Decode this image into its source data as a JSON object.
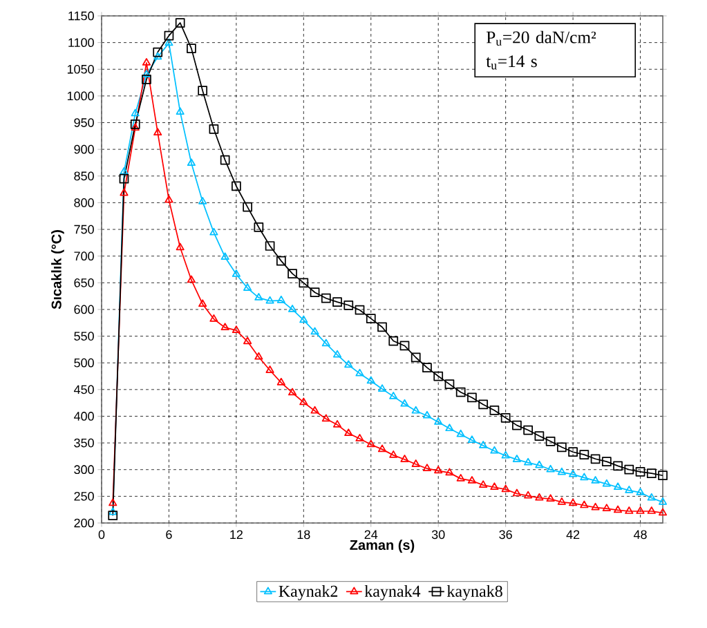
{
  "chart_data": {
    "type": "line",
    "xlabel": "Zaman (s)",
    "ylabel": "Sıcaklık (°C)",
    "annotations": [
      "P$_{u}$=20 daN/cm²",
      "t$_{u}$=14 s"
    ],
    "x": [
      1,
      2,
      3,
      4,
      5,
      6,
      7,
      8,
      9,
      10,
      11,
      12,
      13,
      14,
      15,
      16,
      17,
      18,
      19,
      20,
      21,
      22,
      23,
      24,
      25,
      26,
      27,
      28,
      29,
      30,
      31,
      32,
      33,
      34,
      35,
      36,
      37,
      38,
      39,
      40,
      41,
      42,
      43,
      44,
      45,
      46,
      47,
      48,
      49,
      50
    ],
    "xlim": [
      0,
      50
    ],
    "xticks": [
      0,
      6,
      12,
      18,
      24,
      30,
      36,
      42,
      48
    ],
    "ylim": [
      200,
      1150
    ],
    "yticks": [
      200,
      250,
      300,
      350,
      400,
      450,
      500,
      550,
      600,
      650,
      700,
      750,
      800,
      850,
      900,
      950,
      1000,
      1050,
      1100,
      1150
    ],
    "grid": true,
    "legend": "bottom",
    "line_style": "solid",
    "series": [
      {
        "name": "Kaynak2",
        "color": "#00c0ff",
        "marker": "triangle",
        "values": [
          220,
          858,
          967,
          1040,
          1073,
          1099,
          970,
          874,
          802,
          744,
          698,
          666,
          640,
          622,
          616,
          617,
          600,
          580,
          558,
          536,
          515,
          496,
          480,
          466,
          451,
          437,
          423,
          410,
          401,
          389,
          377,
          366,
          355,
          345,
          335,
          326,
          319,
          313,
          308,
          300,
          295,
          291,
          285,
          279,
          273,
          267,
          261,
          257,
          247,
          239
        ]
      },
      {
        "name": "kaynak4",
        "color": "#ff0000",
        "marker": "triangle",
        "values": [
          237,
          818,
          940,
          1062,
          931,
          805,
          716,
          655,
          610,
          582,
          566,
          561,
          540,
          511,
          486,
          463,
          444,
          426,
          410,
          395,
          384,
          368,
          358,
          347,
          338,
          327,
          319,
          310,
          302,
          298,
          294,
          283,
          279,
          271,
          267,
          263,
          255,
          251,
          247,
          245,
          239,
          237,
          233,
          229,
          227,
          224,
          222,
          222,
          222,
          219
        ]
      },
      {
        "name": "kaynak8",
        "color": "#000000",
        "marker": "square",
        "values": [
          214,
          845,
          947,
          1031,
          1082,
          1113,
          1137,
          1089,
          1010,
          938,
          880,
          831,
          792,
          754,
          719,
          691,
          667,
          650,
          632,
          621,
          614,
          608,
          599,
          583,
          567,
          541,
          532,
          510,
          491,
          475,
          460,
          445,
          435,
          422,
          411,
          397,
          383,
          374,
          363,
          353,
          342,
          333,
          328,
          320,
          315,
          307,
          300,
          296,
          293,
          289
        ]
      }
    ]
  }
}
